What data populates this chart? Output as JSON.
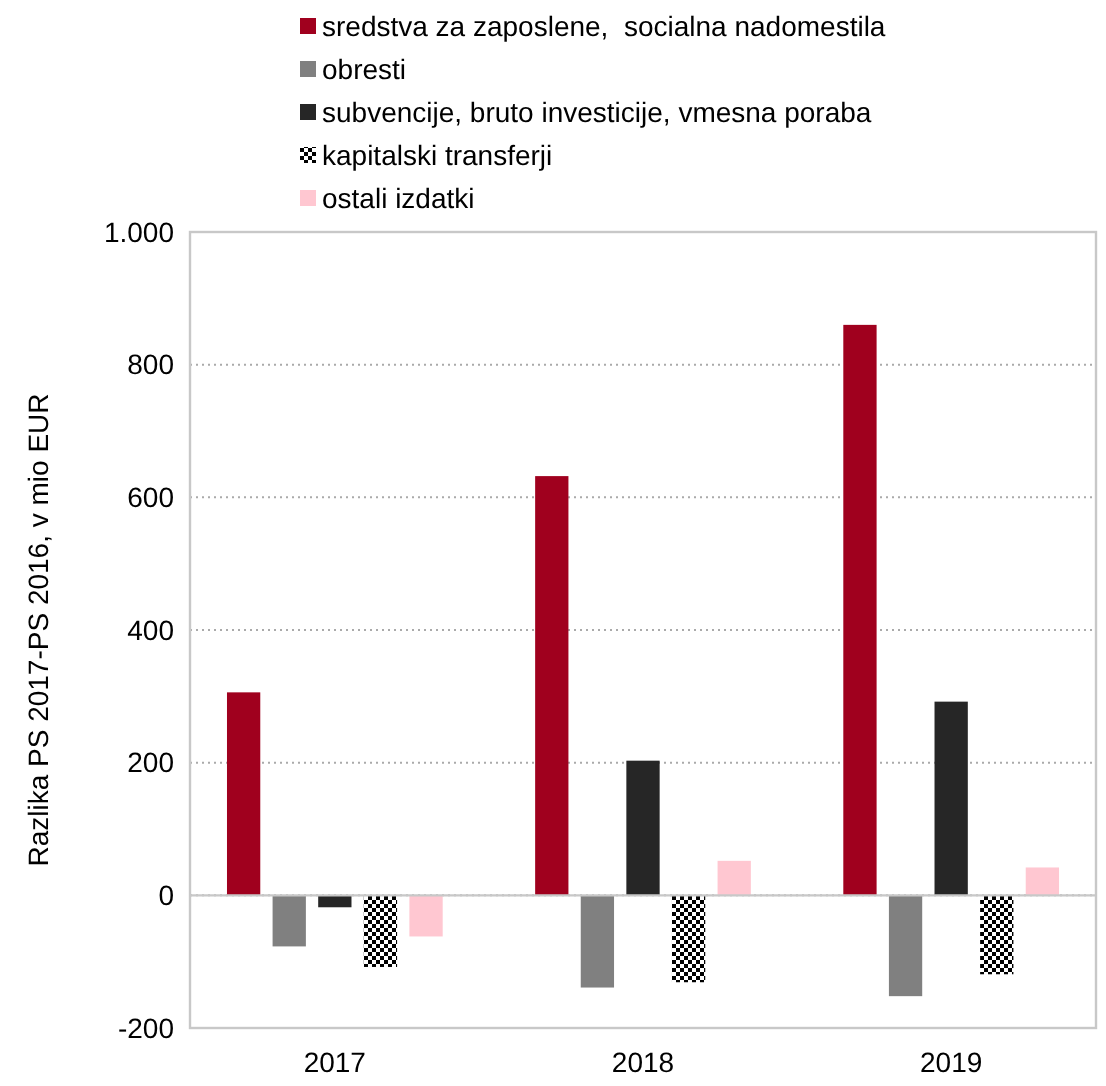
{
  "chart_data": {
    "type": "bar",
    "ylabel": "Razlika PS 2017-PS 2016, v mio EUR",
    "categories": [
      "2017",
      "2018",
      "2019"
    ],
    "series": [
      {
        "name": "sredstva za zaposlene,  socialna nadomestila",
        "color": "#a0001e",
        "values": [
          306,
          632,
          860
        ]
      },
      {
        "name": "obresti",
        "color": "#808080",
        "values": [
          -77,
          -139,
          -152
        ]
      },
      {
        "name": "subvencije, bruto investicije, vmesna poraba",
        "color": "#262626",
        "values": [
          -18,
          203,
          292
        ]
      },
      {
        "name": "kapitalski transferji",
        "color": "#000000",
        "values": [
          -108,
          -131,
          -119
        ]
      },
      {
        "name": "ostali izdatki",
        "color": "#ffc7d1",
        "values": [
          -62,
          52,
          42
        ]
      }
    ],
    "ylim": [
      -200,
      1000
    ],
    "yticks": [
      -200,
      0,
      200,
      400,
      600,
      800,
      {
        "value": 1000,
        "label": "1.000"
      }
    ],
    "grid": "y",
    "legend": "top"
  }
}
